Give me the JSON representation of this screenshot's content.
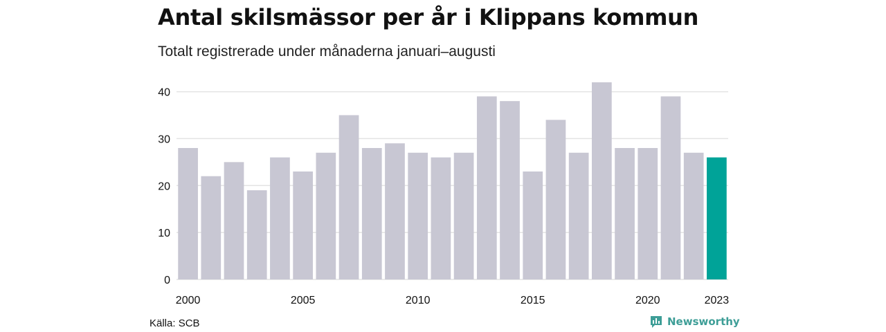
{
  "title": "Antal skilsmässor per år i Klippans kommun",
  "subtitle": "Totalt registrerade under månaderna januari–augusti",
  "source": "Källa: SCB",
  "brand": {
    "name": "Newsworthy",
    "icon": "newsworthy-logo-icon",
    "color": "#3e9e97"
  },
  "colors": {
    "bar": "#c8c7d3",
    "highlight": "#00a398",
    "grid": "#e3e3e3"
  },
  "chart_data": {
    "type": "bar",
    "title": "Antal skilsmässor per år i Klippans kommun",
    "subtitle": "Totalt registrerade under månaderna januari–augusti",
    "xlabel": "",
    "ylabel": "",
    "categories": [
      2000,
      2001,
      2002,
      2003,
      2004,
      2005,
      2006,
      2007,
      2008,
      2009,
      2010,
      2011,
      2012,
      2013,
      2014,
      2015,
      2016,
      2017,
      2018,
      2019,
      2020,
      2021,
      2022,
      2023
    ],
    "values": [
      28,
      22,
      25,
      19,
      26,
      23,
      27,
      35,
      28,
      29,
      27,
      26,
      27,
      39,
      38,
      23,
      34,
      27,
      42,
      28,
      28,
      39,
      27,
      26
    ],
    "highlight": 2023,
    "x_tick_labels": [
      "2000",
      "2005",
      "2010",
      "2015",
      "2020",
      "2023"
    ],
    "y_ticks": [
      0,
      10,
      20,
      30,
      40
    ],
    "ylim": [
      0,
      42
    ],
    "grid": true
  }
}
